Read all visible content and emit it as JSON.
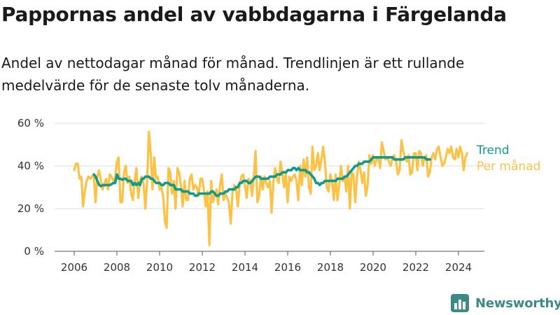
{
  "title": "Pappornas andel av vabbdagarna i Färgelanda",
  "subtitle": "Andel av nettodagar månad för månad. Trendlinjen är ett rullande medelvärde för de senaste tolv månaderna.",
  "brand": {
    "name": "Newsworthy"
  },
  "colors": {
    "monthly": "#fcc245",
    "trend": "#0f9b8e",
    "axis": "#555555",
    "grid": "#dddddd"
  },
  "chart_data": {
    "type": "line",
    "title": "Pappornas andel av vabbdagarna i Färgelanda",
    "subtitle": "Andel av nettodagar månad för månad. Trendlinjen är ett rullande medelvärde för de senaste tolv månaderna.",
    "ylim": [
      0,
      60
    ],
    "xlim": [
      2005.5,
      2025.3
    ],
    "y_ticks": [
      0,
      20,
      40,
      60
    ],
    "y_tick_labels": [
      "0 %",
      "20 %",
      "40 %",
      "60 %"
    ],
    "x_ticks": [
      2006,
      2008,
      2010,
      2012,
      2014,
      2016,
      2018,
      2020,
      2022,
      2024
    ],
    "x_tick_labels": [
      "2006",
      "2008",
      "2010",
      "2012",
      "2014",
      "2016",
      "2018",
      "2020",
      "2022",
      "2024"
    ],
    "grid": "horizontal",
    "series": [
      {
        "name": "Per månad",
        "start": 2006.0,
        "step": 0.0833,
        "values": [
          38,
          41,
          41,
          34,
          35,
          21,
          28,
          33,
          35,
          34,
          35,
          36,
          23,
          35,
          38,
          33,
          29,
          32,
          34,
          29,
          36,
          35,
          33,
          34,
          42,
          44,
          23,
          23,
          37,
          40,
          32,
          35,
          27,
          24,
          33,
          39,
          25,
          33,
          35,
          32,
          20,
          33,
          56,
          46,
          29,
          44,
          34,
          35,
          29,
          30,
          26,
          14,
          11,
          39,
          37,
          27,
          33,
          20,
          39,
          37,
          31,
          21,
          33,
          24,
          24,
          34,
          36,
          29,
          31,
          30,
          26,
          34,
          34,
          28,
          21,
          28,
          3,
          33,
          23,
          26,
          29,
          22,
          31,
          36,
          24,
          27,
          25,
          23,
          13,
          27,
          31,
          30,
          21,
          31,
          35,
          36,
          31,
          25,
          34,
          33,
          26,
          35,
          47,
          23,
          26,
          35,
          29,
          35,
          32,
          30,
          33,
          18,
          33,
          39,
          34,
          32,
          42,
          37,
          30,
          37,
          23,
          35,
          33,
          35,
          36,
          33,
          24,
          40,
          31,
          43,
          35,
          44,
          30,
          27,
          49,
          38,
          40,
          46,
          38,
          43,
          49,
          42,
          30,
          28,
          36,
          33,
          24,
          36,
          24,
          31,
          40,
          33,
          35,
          28,
          40,
          20,
          37,
          36,
          23,
          35,
          42,
          38,
          32,
          37,
          26,
          31,
          45,
          41,
          45,
          40,
          43,
          44,
          39,
          51,
          47,
          43,
          44,
          42,
          40,
          44,
          45,
          42,
          36,
          38,
          52,
          47,
          44,
          42,
          45,
          36,
          37,
          46,
          46,
          38,
          47,
          46,
          40,
          44,
          45,
          35,
          37,
          44,
          46,
          43,
          48,
          49,
          44,
          40,
          41,
          44,
          48,
          46,
          49,
          44,
          43,
          48,
          44,
          49,
          46,
          38,
          44,
          46
        ]
      },
      {
        "name": "Trend",
        "start": 2006.92,
        "step": 0.0833,
        "values": [
          36,
          35,
          33,
          31,
          30.5,
          31,
          31,
          31,
          31,
          31,
          31.5,
          32,
          32,
          36,
          34,
          34,
          33.5,
          34,
          34,
          33,
          33,
          33,
          31,
          32,
          31,
          32,
          31,
          34,
          34,
          35,
          35,
          35,
          34,
          34,
          33,
          32,
          32,
          32,
          31,
          31,
          32,
          32,
          32,
          31,
          31,
          31,
          29,
          29,
          29,
          29,
          28,
          28,
          28,
          28,
          27,
          27,
          27,
          26,
          26,
          27,
          27,
          27,
          27,
          27,
          27,
          27,
          28,
          28,
          27,
          26,
          26,
          27,
          27,
          27,
          28,
          28,
          29,
          29,
          29,
          29,
          30,
          30,
          32,
          32,
          33,
          33,
          33,
          32,
          32,
          33,
          34,
          35,
          35,
          35,
          34,
          34,
          34,
          34,
          34,
          35,
          35,
          35,
          35,
          36,
          36,
          36,
          37,
          37,
          37,
          38,
          38,
          38,
          39,
          39,
          38,
          39,
          38,
          38,
          38,
          38,
          37,
          37,
          36,
          35,
          34,
          32,
          32,
          31,
          32,
          32,
          33,
          33,
          33,
          33,
          33,
          33,
          33,
          34,
          34,
          34,
          34,
          35,
          35,
          36,
          37,
          38,
          39,
          40,
          40,
          41,
          41,
          41,
          42,
          42,
          42,
          42,
          43,
          44,
          44,
          44,
          44,
          44,
          44,
          44,
          44,
          44,
          44,
          44,
          44,
          43,
          43,
          43,
          43,
          43,
          43,
          44,
          44,
          44,
          44,
          44,
          44,
          44,
          44,
          44,
          44,
          44,
          44,
          43,
          43,
          43
        ]
      }
    ],
    "legend": {
      "placement": "right",
      "entries": [
        "Trend",
        "Per månad"
      ]
    }
  }
}
